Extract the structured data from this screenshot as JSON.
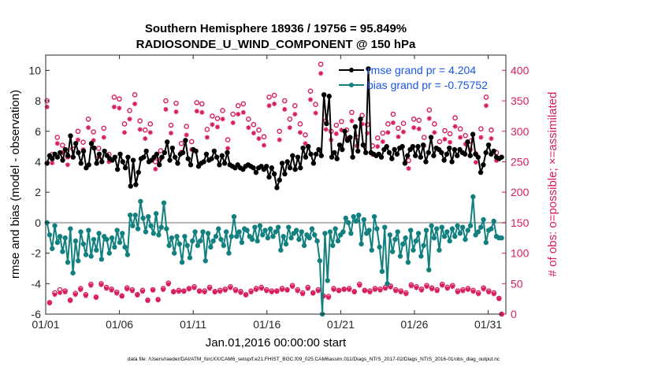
{
  "chart_data": {
    "type": "line",
    "title": "Southern Hemisphere 18936 / 19756 = 95.849%",
    "subtitle": "RADIOSONDE_U_WIND_COMPONENT @ 150 hPa",
    "xlabel": "Jan.01,2016 00:00:00 start",
    "ylabel_left": "rmse and bias (model - observation)",
    "ylabel_right": "# of obs: o=possible; ×=assimilated",
    "xlim": [
      0,
      31.2
    ],
    "ylim_left": [
      -6,
      11
    ],
    "ylim_right": [
      0,
      425
    ],
    "yticks_left": [
      -6,
      -4,
      -2,
      0,
      2,
      4,
      6,
      8,
      10
    ],
    "yticks_right": [
      0,
      50,
      100,
      150,
      200,
      250,
      300,
      350,
      400
    ],
    "xtick_positions": [
      0,
      5,
      10,
      15,
      20,
      25,
      30
    ],
    "xtick_labels": [
      "01/01",
      "01/06",
      "01/11",
      "01/16",
      "01/21",
      "01/26",
      "01/31"
    ],
    "legend": [
      {
        "name": "rmse grand pr = 4.204",
        "color": "#000000"
      },
      {
        "name": "bias grand pr = -0.75752",
        "color": "#138080"
      }
    ],
    "colors": {
      "rmse": "#000000",
      "bias": "#138080",
      "obs": "#d81d5e",
      "zero_line": "#b3b3b3",
      "legend_text": "#1a55e6"
    },
    "series": [
      {
        "name": "rmse",
        "axis": "left",
        "values": [
          3.9,
          4.4,
          4.2,
          4.5,
          4.3,
          4.6,
          4.1,
          4.8,
          4.4,
          5.7,
          4.3,
          5.2,
          4.6,
          3.9,
          4.7,
          3.6,
          3.8,
          5.2,
          4.9,
          3.9,
          4.5,
          4.0,
          4.7,
          4.4,
          4.2,
          4.1,
          4.3,
          3.5,
          4.5,
          4.0,
          3.6,
          4.3,
          2.4,
          4.1,
          2.5,
          3.3,
          4.2,
          4.3,
          4.7,
          4.0,
          4.1,
          4.3,
          4.5,
          3.8,
          4.3,
          4.6,
          5.3,
          4.1,
          4.9,
          4.3,
          3.9,
          4.5,
          4.6,
          5.4,
          4.2,
          3.8,
          4.8,
          4.7,
          3.7,
          3.9,
          4.0,
          4.5,
          4.1,
          4.2,
          4.7,
          4.3,
          3.8,
          4.4,
          3.9,
          4.6,
          3.8,
          3.7,
          3.6,
          3.8,
          3.6,
          3.5,
          3.7,
          3.8,
          3.7,
          3.6,
          3.3,
          3.6,
          3.7,
          3.5,
          3.7,
          3.0,
          3.6,
          3.2,
          2.3,
          2.8,
          3.9,
          3.2,
          4.0,
          3.6,
          4.4,
          3.5,
          4.3,
          3.6,
          4.9,
          4.3,
          5.0,
          4.5,
          3.9,
          4.5,
          4.8,
          4.4,
          8.4,
          6.5,
          8.3,
          4.3,
          4.6,
          4.2,
          5.1,
          4.8,
          6.0,
          5.4,
          5.6,
          4.3,
          6.3,
          4.7,
          6.8,
          5.1,
          4.6,
          10.1,
          4.6,
          4.5,
          4.4,
          4.5,
          4.3,
          4.8,
          5.0,
          4.6,
          4.2,
          4.8,
          4.5,
          4.9,
          5.0,
          3.9,
          4.4,
          4.8,
          5.0,
          4.4,
          5.0,
          4.3,
          5.1,
          4.0,
          4.6,
          5.6,
          4.4,
          4.9,
          4.8,
          4.6,
          4.1,
          4.5,
          4.9,
          4.0,
          4.8,
          4.4,
          4.8,
          4.6,
          4.5,
          5.3,
          4.4,
          5.8,
          4.5,
          4.3,
          3.3,
          3.8,
          4.6,
          5.1,
          4.5,
          4.7,
          4.3,
          4.2,
          4.3
        ]
      },
      {
        "name": "bias",
        "axis": "left",
        "values": [
          0.0,
          -0.8,
          -1.7,
          -0.2,
          -1.3,
          -0.9,
          -1.9,
          -1.0,
          -2.6,
          -0.4,
          -3.3,
          -1.2,
          -2.5,
          -0.6,
          -1.4,
          -2.1,
          -0.5,
          -2.2,
          -1.1,
          -1.8,
          -0.7,
          -2.4,
          -0.9,
          -1.1,
          -2.0,
          -1.0,
          -1.6,
          -0.5,
          -1.3,
          -0.7,
          -1.6,
          -2.1,
          0.5,
          -0.2,
          0.5,
          -0.4,
          1.4,
          0.3,
          -0.6,
          0.4,
          -0.2,
          -0.7,
          0.6,
          -0.8,
          -0.3,
          1.3,
          -0.4,
          -1.5,
          -1.0,
          -2.0,
          -0.9,
          -1.4,
          -2.6,
          -0.9,
          -1.5,
          -2.3,
          -1.2,
          -0.6,
          -1.5,
          -1.2,
          -0.6,
          -2.5,
          -0.7,
          -1.6,
          -1.2,
          -0.9,
          -0.4,
          -1.1,
          -1.5,
          -0.6,
          -2.0,
          -0.9,
          0.4,
          -0.9,
          -0.6,
          -1.3,
          -0.4,
          -0.5,
          -0.9,
          -1.1,
          -0.3,
          -1.2,
          -0.2,
          -0.8,
          -0.5,
          -1.0,
          -0.4,
          -0.9,
          -0.6,
          -0.3,
          -1.8,
          -0.9,
          -1.4,
          -0.3,
          -1.0,
          -0.7,
          -0.5,
          -1.1,
          -0.6,
          -1.5,
          -0.8,
          -1.0,
          -0.4,
          -0.8,
          -1.2,
          -2.5,
          -6.0,
          -0.7,
          -3.8,
          -0.6,
          -1.5,
          -0.4,
          -1.2,
          -0.8,
          -0.6,
          0.3,
          0.0,
          -0.7,
          0.4,
          0.1,
          0.5,
          -1.4,
          0.2,
          -0.7,
          -0.5,
          -1.8,
          0.4,
          -0.4,
          -1.6,
          -3.2,
          -0.3,
          -4.0,
          -0.8,
          -1.9,
          -1.1,
          -0.6,
          -2.2,
          -1.4,
          -1.0,
          -2.6,
          -0.5,
          -1.8,
          -1.2,
          -0.7,
          -2.2,
          -1.5,
          -0.5,
          -3.1,
          -0.2,
          -1.0,
          -0.4,
          -1.8,
          -0.3,
          -0.9,
          -0.6,
          -1.2,
          -0.4,
          -0.9,
          -0.2,
          -0.7,
          -0.3,
          -1.1,
          -0.5,
          -0.2,
          1.7,
          -0.8,
          -0.6,
          -0.3,
          0.2,
          -1.3,
          -0.5,
          -0.4,
          0.1,
          -0.9,
          -1.0,
          -1.0
        ]
      },
      {
        "name": "possible",
        "axis": "right",
        "values": [
          350,
          19,
          262,
          35,
          290,
          40,
          277,
          38,
          258,
          23,
          271,
          34,
          300,
          42,
          282,
          32,
          320,
          49,
          299,
          28,
          272,
          50,
          305,
          44,
          262,
          41,
          356,
          36,
          353,
          30,
          312,
          43,
          334,
          40,
          360,
          32,
          317,
          39,
          302,
          23,
          312,
          40,
          250,
          24,
          268,
          42,
          350,
          51,
          310,
          37,
          346,
          39,
          280,
          38,
          308,
          42,
          283,
          45,
          347,
          38,
          345,
          38,
          303,
          44,
          325,
          37,
          321,
          39,
          334,
          41,
          286,
          45,
          328,
          40,
          342,
          37,
          345,
          32,
          320,
          38,
          311,
          42,
          302,
          44,
          291,
          40,
          356,
          38,
          359,
          38,
          300,
          42,
          350,
          40,
          320,
          47,
          342,
          40,
          312,
          35,
          294,
          44,
          366,
          35,
          344,
          40,
          410,
          30,
          317,
          29,
          300,
          42,
          310,
          39,
          316,
          41,
          302,
          42,
          331,
          37,
          290,
          49,
          326,
          39,
          311,
          38,
          276,
          42,
          289,
          41,
          297,
          44,
          312,
          46,
          328,
          40,
          305,
          38,
          313,
          35,
          252,
          48,
          320,
          45,
          318,
          41,
          290,
          47,
          335,
          43,
          312,
          40,
          283,
          49,
          301,
          44,
          296,
          47,
          322,
          38,
          304,
          40,
          293,
          42,
          284,
          39,
          263,
          35,
          304,
          43,
          356,
          38,
          302,
          35,
          265,
          26,
          0
        ]
      },
      {
        "name": "assimilated",
        "axis": "right",
        "values": [
          340,
          18,
          248,
          32,
          280,
          35,
          265,
          36,
          245,
          22,
          258,
          32,
          286,
          40,
          270,
          30,
          306,
          47,
          285,
          27,
          258,
          48,
          290,
          42,
          250,
          39,
          340,
          34,
          338,
          29,
          298,
          41,
          320,
          38,
          345,
          31,
          303,
          37,
          288,
          22,
          298,
          39,
          238,
          23,
          255,
          40,
          336,
          49,
          297,
          36,
          332,
          37,
          266,
          37,
          294,
          41,
          270,
          43,
          333,
          37,
          331,
          36,
          290,
          42,
          311,
          36,
          307,
          37,
          320,
          39,
          272,
          43,
          314,
          38,
          328,
          35,
          331,
          31,
          306,
          36,
          297,
          40,
          288,
          42,
          277,
          38,
          342,
          36,
          345,
          37,
          286,
          40,
          336,
          39,
          306,
          45,
          328,
          38,
          298,
          33,
          280,
          42,
          352,
          34,
          330,
          38,
          395,
          29,
          303,
          27,
          286,
          40,
          296,
          38,
          302,
          40,
          288,
          40,
          317,
          36,
          276,
          47,
          312,
          38,
          297,
          36,
          262,
          40,
          275,
          39,
          283,
          42,
          298,
          44,
          314,
          38,
          291,
          36,
          299,
          33,
          239,
          46,
          306,
          43,
          304,
          39,
          276,
          45,
          321,
          41,
          298,
          38,
          269,
          47,
          287,
          42,
          282,
          45,
          308,
          36,
          290,
          38,
          279,
          40,
          270,
          37,
          249,
          33,
          290,
          41,
          342,
          36,
          288,
          33,
          252,
          25,
          0
        ]
      }
    ]
  },
  "footer": "data file: /Users/raeder/DAI/ATM_forcXX/CAM6_setup/f.e21.FHIST_BGC.f09_025.CAM6assim.011/Diags_NTrS_2017-02/Diags_NTrS_2016-01/obs_diag_output.nc"
}
